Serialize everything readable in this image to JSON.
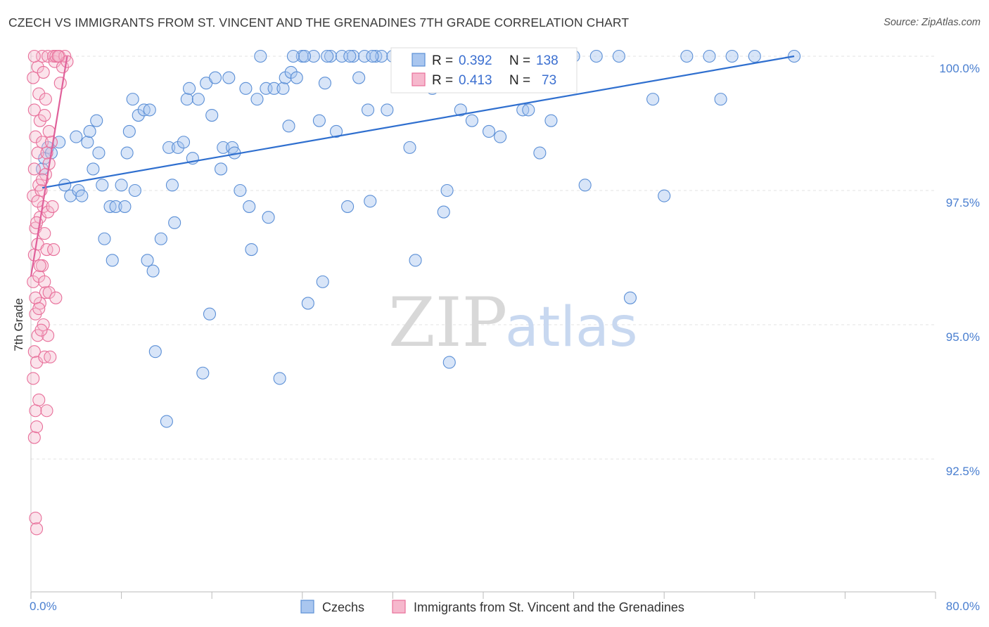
{
  "title": "CZECH VS IMMIGRANTS FROM ST. VINCENT AND THE GRENADINES 7TH GRADE CORRELATION CHART",
  "source": "Source: ZipAtlas.com",
  "watermark": {
    "zip": "ZIP",
    "atlas": "atlas"
  },
  "colors": {
    "blue": "#5b8fd6",
    "blue_fill": "#a9c6ef",
    "pink": "#e86f9a",
    "pink_fill": "#f6b8cd",
    "line_blue": "#2f6fcf",
    "line_pink": "#e0609a"
  },
  "chart_data": {
    "type": "scatter",
    "title": "CZECH VS IMMIGRANTS FROM ST. VINCENT AND THE GRENADINES 7TH GRADE CORRELATION CHART",
    "ylabel": "7th Grade",
    "xlabel": "",
    "xlim": [
      0,
      80
    ],
    "ylim": [
      90.0,
      100.5
    ],
    "x_tick_labels": [
      "0.0%",
      "80.0%"
    ],
    "y_ticks": [
      92.5,
      95.0,
      97.5,
      100.0
    ],
    "y_tick_labels": [
      "92.5%",
      "95.0%",
      "97.5%",
      "100.0%"
    ],
    "grid": true,
    "legend_position": "top-center",
    "legend": [
      {
        "r_label": "R =",
        "r": "0.392",
        "n_label": "N =",
        "n": "138"
      },
      {
        "r_label": "R =",
        "r": "0.413",
        "n_label": "N =",
        "n": "73"
      }
    ],
    "series": [
      {
        "name": "Czechs",
        "color": "#5b8fd6",
        "trend": {
          "x": [
            1.0,
            67.5
          ],
          "y": [
            97.55,
            100.0
          ]
        },
        "points": [
          [
            1.0,
            97.9
          ],
          [
            1.2,
            98.1
          ],
          [
            1.5,
            98.3
          ],
          [
            1.8,
            98.2
          ],
          [
            2.5,
            98.4
          ],
          [
            3.0,
            97.6
          ],
          [
            3.5,
            97.4
          ],
          [
            4.0,
            98.5
          ],
          [
            4.2,
            97.5
          ],
          [
            4.5,
            97.4
          ],
          [
            5.0,
            98.4
          ],
          [
            5.2,
            98.6
          ],
          [
            5.5,
            97.9
          ],
          [
            5.8,
            98.8
          ],
          [
            6.0,
            98.2
          ],
          [
            6.5,
            96.6
          ],
          [
            6.3,
            97.6
          ],
          [
            7.0,
            97.2
          ],
          [
            7.2,
            96.2
          ],
          [
            7.5,
            97.2
          ],
          [
            8.0,
            97.6
          ],
          [
            8.3,
            97.2
          ],
          [
            8.5,
            98.2
          ],
          [
            8.7,
            98.6
          ],
          [
            9.0,
            99.2
          ],
          [
            9.2,
            97.5
          ],
          [
            9.5,
            98.9
          ],
          [
            10.0,
            99.0
          ],
          [
            10.3,
            96.2
          ],
          [
            10.5,
            99.0
          ],
          [
            10.8,
            96.0
          ],
          [
            11.0,
            94.5
          ],
          [
            11.5,
            96.6
          ],
          [
            12.0,
            93.2
          ],
          [
            12.2,
            98.3
          ],
          [
            12.5,
            97.6
          ],
          [
            12.7,
            96.9
          ],
          [
            13.0,
            98.3
          ],
          [
            13.5,
            98.4
          ],
          [
            13.8,
            99.2
          ],
          [
            14.0,
            99.4
          ],
          [
            14.3,
            98.1
          ],
          [
            14.8,
            99.2
          ],
          [
            15.2,
            94.1
          ],
          [
            15.5,
            99.5
          ],
          [
            15.8,
            95.2
          ],
          [
            16.0,
            98.9
          ],
          [
            16.3,
            99.6
          ],
          [
            16.8,
            97.9
          ],
          [
            17.0,
            98.3
          ],
          [
            17.5,
            99.6
          ],
          [
            17.8,
            98.3
          ],
          [
            18.0,
            98.2
          ],
          [
            18.5,
            97.5
          ],
          [
            19.0,
            99.4
          ],
          [
            19.3,
            97.2
          ],
          [
            19.5,
            96.4
          ],
          [
            20.0,
            99.2
          ],
          [
            20.3,
            100.0
          ],
          [
            20.8,
            99.4
          ],
          [
            21.0,
            97.0
          ],
          [
            21.5,
            99.4
          ],
          [
            22.0,
            94.0
          ],
          [
            22.3,
            99.4
          ],
          [
            22.5,
            99.6
          ],
          [
            22.8,
            98.7
          ],
          [
            23.0,
            99.7
          ],
          [
            23.5,
            99.6
          ],
          [
            24.0,
            100.0
          ],
          [
            24.5,
            95.4
          ],
          [
            25.0,
            100.0
          ],
          [
            25.5,
            98.8
          ],
          [
            25.8,
            95.8
          ],
          [
            26.0,
            99.5
          ],
          [
            26.5,
            100.0
          ],
          [
            27.0,
            98.6
          ],
          [
            27.5,
            100.0
          ],
          [
            28.0,
            97.2
          ],
          [
            28.5,
            100.0
          ],
          [
            29.0,
            99.6
          ],
          [
            29.5,
            100.0
          ],
          [
            29.8,
            99.0
          ],
          [
            30.0,
            97.3
          ],
          [
            30.5,
            100.0
          ],
          [
            31.0,
            100.0
          ],
          [
            31.5,
            99.0
          ],
          [
            32.0,
            100.0
          ],
          [
            33.0,
            100.0
          ],
          [
            33.5,
            98.3
          ],
          [
            34.0,
            96.2
          ],
          [
            34.5,
            100.0
          ],
          [
            35.0,
            100.0
          ],
          [
            35.5,
            99.4
          ],
          [
            36.0,
            100.0
          ],
          [
            36.5,
            97.1
          ],
          [
            36.8,
            97.5
          ],
          [
            37.0,
            94.3
          ],
          [
            37.5,
            100.0
          ],
          [
            38.0,
            99.0
          ],
          [
            38.5,
            100.0
          ],
          [
            39.0,
            98.8
          ],
          [
            39.5,
            100.0
          ],
          [
            40.0,
            100.0
          ],
          [
            40.5,
            98.6
          ],
          [
            41.0,
            100.0
          ],
          [
            41.5,
            98.5
          ],
          [
            42.0,
            100.0
          ],
          [
            42.5,
            100.0
          ],
          [
            43.0,
            100.0
          ],
          [
            43.5,
            99.0
          ],
          [
            44.0,
            99.0
          ],
          [
            44.5,
            100.0
          ],
          [
            45.0,
            98.2
          ],
          [
            45.5,
            100.0
          ],
          [
            46.0,
            98.8
          ],
          [
            46.5,
            100.0
          ],
          [
            47.0,
            100.0
          ],
          [
            48.0,
            100.0
          ],
          [
            49.0,
            97.6
          ],
          [
            50.0,
            100.0
          ],
          [
            52.0,
            100.0
          ],
          [
            53.0,
            95.5
          ],
          [
            55.0,
            99.2
          ],
          [
            56.0,
            97.4
          ],
          [
            58.0,
            100.0
          ],
          [
            60.0,
            100.0
          ],
          [
            61.0,
            99.2
          ],
          [
            62.0,
            100.0
          ],
          [
            64.0,
            100.0
          ],
          [
            67.5,
            100.0
          ],
          [
            28.2,
            100.0
          ],
          [
            30.2,
            100.0
          ],
          [
            26.2,
            100.0
          ],
          [
            24.2,
            100.0
          ],
          [
            23.2,
            100.0
          ],
          [
            35.2,
            100.0
          ],
          [
            44.2,
            100.0
          ],
          [
            47.5,
            100.0
          ]
        ]
      },
      {
        "name": "Immigrants from St. Vincent and the Grenadines",
        "color": "#e86f9a",
        "trend": {
          "x": [
            0.0,
            3.2
          ],
          "y": [
            95.9,
            100.0
          ]
        },
        "points": [
          [
            0.2,
            99.6
          ],
          [
            0.3,
            99.0
          ],
          [
            0.4,
            98.5
          ],
          [
            0.3,
            97.9
          ],
          [
            0.2,
            97.4
          ],
          [
            0.4,
            96.8
          ],
          [
            0.3,
            96.3
          ],
          [
            0.2,
            95.8
          ],
          [
            0.4,
            95.2
          ],
          [
            0.3,
            94.5
          ],
          [
            0.2,
            94.0
          ],
          [
            0.4,
            93.4
          ],
          [
            0.3,
            92.9
          ],
          [
            0.4,
            91.4
          ],
          [
            0.5,
            91.2
          ],
          [
            0.6,
            99.8
          ],
          [
            0.7,
            99.3
          ],
          [
            0.8,
            98.8
          ],
          [
            0.6,
            98.2
          ],
          [
            0.7,
            97.6
          ],
          [
            0.8,
            97.0
          ],
          [
            0.6,
            96.5
          ],
          [
            0.7,
            95.9
          ],
          [
            0.8,
            95.4
          ],
          [
            0.6,
            94.8
          ],
          [
            0.5,
            94.3
          ],
          [
            0.7,
            93.6
          ],
          [
            0.5,
            93.1
          ],
          [
            1.0,
            100.0
          ],
          [
            1.1,
            99.7
          ],
          [
            1.2,
            98.9
          ],
          [
            1.0,
            98.4
          ],
          [
            1.3,
            97.8
          ],
          [
            1.1,
            97.2
          ],
          [
            1.2,
            96.7
          ],
          [
            1.0,
            96.1
          ],
          [
            1.3,
            95.6
          ],
          [
            1.1,
            95.0
          ],
          [
            1.2,
            94.4
          ],
          [
            1.5,
            100.0
          ],
          [
            1.6,
            98.6
          ],
          [
            1.5,
            97.1
          ],
          [
            1.4,
            96.4
          ],
          [
            1.6,
            95.6
          ],
          [
            1.5,
            94.8
          ],
          [
            1.7,
            94.4
          ],
          [
            1.4,
            93.4
          ],
          [
            2.0,
            100.0
          ],
          [
            2.1,
            99.9
          ],
          [
            2.2,
            100.0
          ],
          [
            1.9,
            97.2
          ],
          [
            2.0,
            96.4
          ],
          [
            2.2,
            95.5
          ],
          [
            2.5,
            100.0
          ],
          [
            2.8,
            99.8
          ],
          [
            3.0,
            100.0
          ],
          [
            3.2,
            99.9
          ],
          [
            0.9,
            97.5
          ],
          [
            1.8,
            98.4
          ],
          [
            0.5,
            96.9
          ],
          [
            0.8,
            96.1
          ],
          [
            1.2,
            95.8
          ],
          [
            0.4,
            95.5
          ],
          [
            0.9,
            94.9
          ],
          [
            1.6,
            98.0
          ],
          [
            2.4,
            100.0
          ],
          [
            0.3,
            100.0
          ],
          [
            0.6,
            97.3
          ],
          [
            1.0,
            97.7
          ],
          [
            1.4,
            98.2
          ],
          [
            0.7,
            95.3
          ],
          [
            1.3,
            99.2
          ],
          [
            2.6,
            99.5
          ]
        ]
      }
    ]
  }
}
